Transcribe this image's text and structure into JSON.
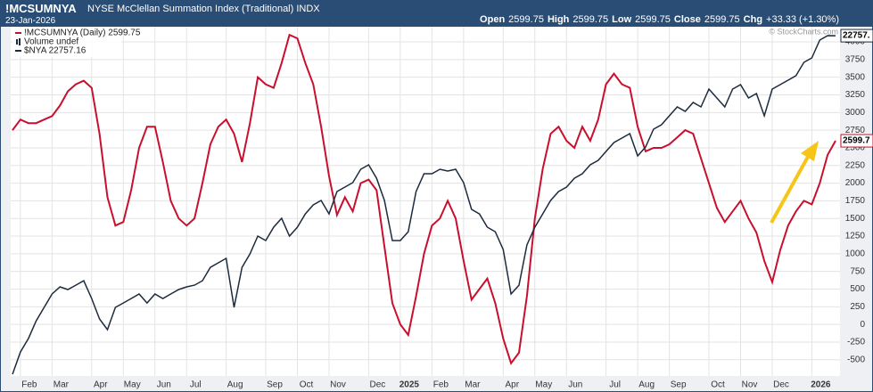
{
  "header": {
    "symbol": "!MCSUMNYA",
    "name": "NYSE McClellan Summation Index (Traditional)",
    "exchange": "INDX",
    "date": "23-Jan-2026",
    "quote": [
      {
        "label": "Open",
        "value": 2599.75
      },
      {
        "label": "High",
        "value": 2599.75
      },
      {
        "label": "Low",
        "value": 2599.75
      },
      {
        "label": "Close",
        "value": 2599.75
      }
    ],
    "change_label": "Chg",
    "change": "+33.33 (+1.30%)"
  },
  "chart_data": {
    "type": "line",
    "watermark": "© StockCharts.com",
    "volume_label": "Volume undef",
    "categories": [
      null,
      "Feb",
      null,
      null,
      null,
      "Mar",
      null,
      null,
      null,
      null,
      "Apr",
      null,
      null,
      null,
      "May",
      null,
      null,
      null,
      "Jun",
      null,
      null,
      null,
      "Jul",
      null,
      null,
      null,
      null,
      "Aug",
      null,
      null,
      null,
      null,
      "Sep",
      null,
      null,
      null,
      "Oct",
      null,
      null,
      null,
      "Nov",
      null,
      null,
      null,
      null,
      "Dec",
      null,
      null,
      null,
      "2025",
      null,
      null,
      null,
      "Feb",
      null,
      null,
      null,
      "Mar",
      null,
      null,
      null,
      null,
      "Apr",
      null,
      null,
      null,
      "May",
      null,
      null,
      null,
      "Jun",
      null,
      null,
      null,
      null,
      "Jul",
      null,
      null,
      null,
      "Aug",
      null,
      null,
      null,
      "Sep",
      null,
      null,
      null,
      null,
      "Oct",
      null,
      null,
      null,
      "Nov",
      null,
      null,
      null,
      "Dec",
      null,
      null,
      null,
      null,
      "2026",
      null,
      null,
      null
    ],
    "series": [
      {
        "name": "!MCSUMNYA (Daily) 2599.75",
        "color": "#c8102e",
        "end_label": "2599.7",
        "values": [
          2750,
          2900,
          2850,
          2850,
          2900,
          2950,
          3100,
          3300,
          3400,
          3450,
          3350,
          2700,
          1800,
          1400,
          1450,
          1900,
          2500,
          2800,
          2800,
          2300,
          1750,
          1500,
          1400,
          1500,
          2000,
          2550,
          2800,
          2900,
          2700,
          2300,
          2850,
          3500,
          3400,
          3350,
          3700,
          4100,
          4050,
          3700,
          3400,
          2800,
          2100,
          1550,
          1800,
          1600,
          2000,
          2050,
          1900,
          1100,
          300,
          0,
          -150,
          400,
          1000,
          1400,
          1500,
          1750,
          1500,
          900,
          350,
          500,
          650,
          300,
          -200,
          -550,
          -400,
          400,
          1500,
          2200,
          2700,
          2800,
          2600,
          2500,
          2800,
          2600,
          2900,
          3400,
          3550,
          3400,
          3350,
          2800,
          2450,
          2500,
          2500,
          2550,
          2650,
          2750,
          2700,
          2350,
          2000,
          1650,
          1450,
          1600,
          1750,
          1500,
          1300,
          900,
          600,
          1050,
          1400,
          1600,
          1750,
          1700,
          2000,
          2400,
          2599.75
        ]
      },
      {
        "name": "$NYA 22757.16",
        "color": "#1c2b3d",
        "axis": "y2",
        "end_label": "22757.",
        "values": [
          16621,
          17025,
          17267,
          17590,
          17833,
          18075,
          18204,
          18156,
          18236,
          18317,
          17994,
          17623,
          17429,
          17833,
          17913,
          17994,
          18075,
          17913,
          18075,
          17994,
          18075,
          18156,
          18204,
          18236,
          18317,
          18559,
          18640,
          18721,
          17833,
          18559,
          18802,
          19125,
          19044,
          19286,
          19448,
          19125,
          19286,
          19528,
          19690,
          19771,
          19528,
          19932,
          20013,
          20094,
          20336,
          20417,
          20174,
          19771,
          19044,
          19044,
          19205,
          19932,
          20255,
          20255,
          20336,
          20304,
          20336,
          20094,
          19609,
          19528,
          19286,
          19205,
          18882,
          18075,
          18236,
          18963,
          19286,
          19528,
          19771,
          19932,
          20013,
          20174,
          20255,
          20417,
          20497,
          20659,
          20820,
          20901,
          20982,
          20578,
          20740,
          21063,
          21143,
          21305,
          21466,
          21386,
          21547,
          21466,
          21789,
          21628,
          21466,
          21789,
          21870,
          21628,
          21709,
          21305,
          21789,
          21870,
          21951,
          22032,
          22274,
          22355,
          22678,
          22758,
          22757.16
        ]
      }
    ],
    "ylim": [
      -730,
      4215
    ],
    "yticks": [
      -500,
      -250,
      0,
      250,
      500,
      750,
      1000,
      1250,
      1500,
      1750,
      2000,
      2250,
      2500,
      2750,
      3000,
      3250,
      3500,
      3750,
      4000
    ],
    "y2lim": [
      16590,
      22920
    ],
    "grid": true
  }
}
